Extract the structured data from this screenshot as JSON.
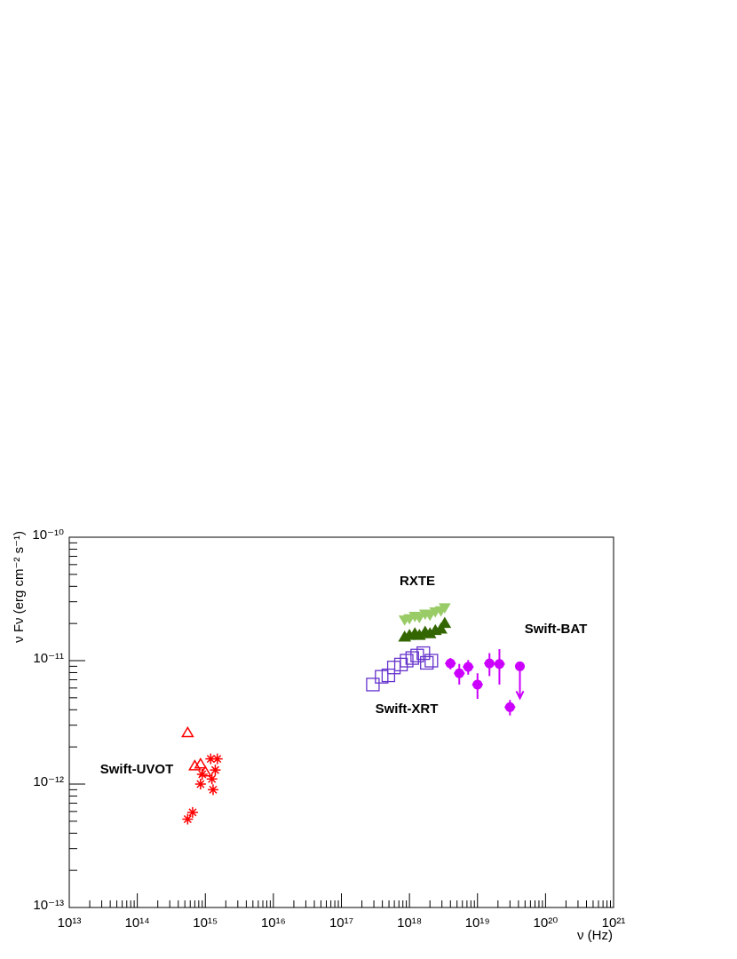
{
  "chart_data": {
    "type": "scatter",
    "xlabel": "ν (Hz)",
    "ylabel": "ν Fν (erg cm⁻² s⁻¹)",
    "xlog": true,
    "ylog": true,
    "xlim": [
      10000000000000.0,
      1e+21
    ],
    "ylim": [
      1e-13,
      1e-10
    ],
    "xticks": [
      {
        "value": 10000000000000.0,
        "label": "10¹³"
      },
      {
        "value": 100000000000000.0,
        "label": "10¹⁴"
      },
      {
        "value": 1000000000000000.0,
        "label": "10¹⁵"
      },
      {
        "value": 1e+16,
        "label": "10¹⁶"
      },
      {
        "value": 1e+17,
        "label": "10¹⁷"
      },
      {
        "value": 1e+18,
        "label": "10¹⁸"
      },
      {
        "value": 1e+19,
        "label": "10¹⁹"
      },
      {
        "value": 1e+20,
        "label": "10²⁰"
      },
      {
        "value": 1e+21,
        "label": "10²¹"
      }
    ],
    "yticks": [
      {
        "value": 1e-13,
        "label": "10⁻¹³"
      },
      {
        "value": 1e-12,
        "label": "10⁻¹²"
      },
      {
        "value": 1e-11,
        "label": "10⁻¹¹"
      },
      {
        "value": 1e-10,
        "label": "10⁻¹⁰"
      }
    ],
    "annotations": [
      "RXTE",
      "Swift-BAT",
      "Swift-XRT",
      "Swift-UVOT"
    ],
    "series": [
      {
        "color": "#ff0000",
        "marker": "triangle-open",
        "x": [
          550000000000000.0,
          700000000000000.0,
          850000000000000.0,
          1000000000000000.0
        ],
        "values": [
          2.6e-12,
          1.4e-12,
          1.45e-12,
          1.25e-12
        ]
      },
      {
        "color": "#ff0000",
        "marker": "star",
        "x": [
          550000000000000.0,
          650000000000000.0,
          850000000000000.0,
          900000000000000.0,
          1200000000000000.0,
          1250000000000000.0,
          1300000000000000.0,
          1400000000000000.0,
          1500000000000000.0
        ],
        "values": [
          5.2e-13,
          5.9e-13,
          1e-12,
          1.2e-12,
          1.6e-12,
          1.1e-12,
          9e-13,
          1.3e-12,
          1.6e-12
        ]
      },
      {
        "color": "#99cc66",
        "marker": "triangle-down",
        "x": [
          8.5e+17,
          1e+18,
          1.2e+18,
          1.4e+18,
          1.7e+18,
          2e+18,
          2.4e+18,
          2.9e+18,
          3.3e+18
        ],
        "values": [
          2.15e-11,
          2.2e-11,
          2.3e-11,
          2.25e-11,
          2.4e-11,
          2.35e-11,
          2.5e-11,
          2.55e-11,
          2.7e-11
        ]
      },
      {
        "color": "#336600",
        "marker": "triangle",
        "x": [
          8.5e+17,
          1e+18,
          1.2e+18,
          1.4e+18,
          1.7e+18,
          2e+18,
          2.4e+18,
          2.9e+18,
          3.3e+18
        ],
        "values": [
          1.55e-11,
          1.6e-11,
          1.65e-11,
          1.6e-11,
          1.7e-11,
          1.65e-11,
          1.75e-11,
          1.8e-11,
          2e-11
        ]
      },
      {
        "color": "#6633cc",
        "marker": "square-open",
        "x": [
          2.9e+17,
          3.9e+17,
          4.9e+17,
          5.9e+17,
          7.5e+17,
          9.1e+17,
          1.1e+18,
          1.3e+18,
          1.6e+18,
          1.8e+18,
          2.1e+18
        ],
        "values": [
          6.4e-12,
          7.4e-12,
          7.6e-12,
          8.8e-12,
          9.3e-12,
          1e-11,
          1.05e-11,
          1.1e-11,
          1.15e-11,
          9.6e-12,
          1e-11
        ]
      },
      {
        "color": "#cc00ff",
        "marker": "circle",
        "x": [
          4e+18,
          5.4e+18,
          7.3e+18,
          1e+19,
          1.5e+19,
          2.1e+19,
          3e+19,
          4.2e+19
        ],
        "values": [
          9.5e-12,
          7.9e-12,
          8.9e-12,
          6.4e-12,
          9.5e-12,
          9.4e-12,
          4.2e-12,
          9e-12
        ],
        "errors": [
          1e-12,
          1.5e-12,
          1.2e-12,
          1.5e-12,
          2e-12,
          3e-12,
          6e-13,
          null
        ],
        "upper_limit": [
          false,
          false,
          false,
          false,
          false,
          false,
          false,
          true
        ]
      }
    ]
  }
}
